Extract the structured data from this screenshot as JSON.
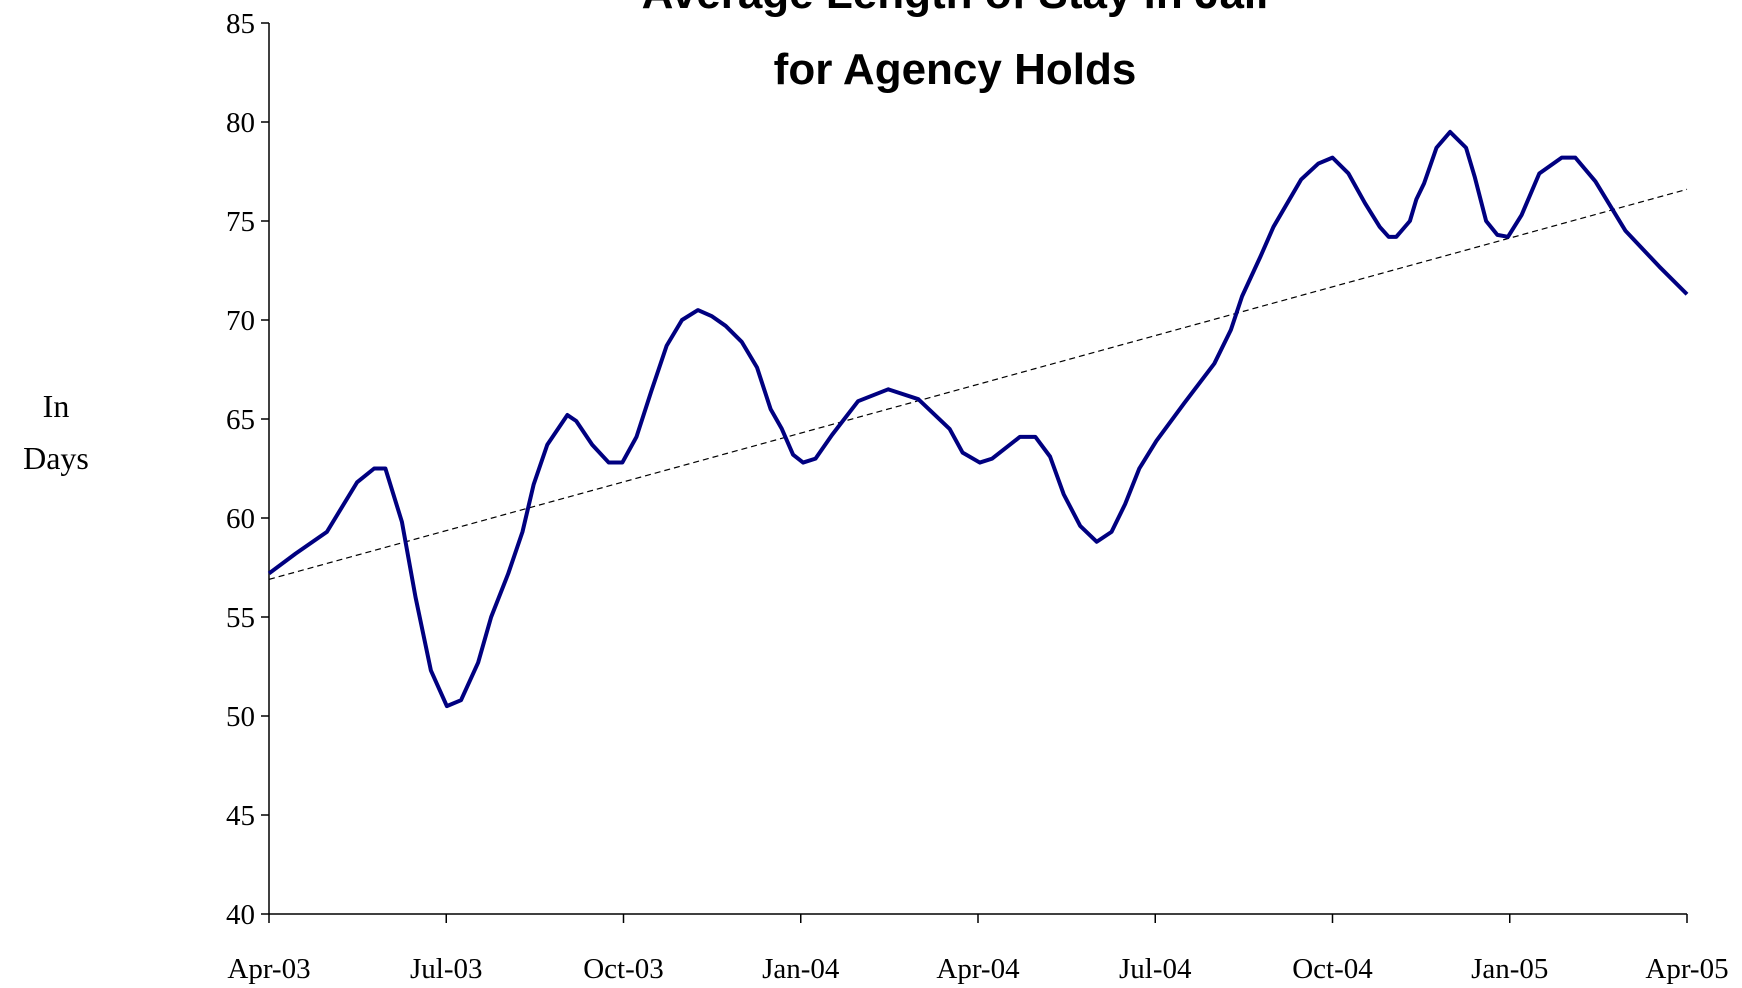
{
  "chart_data": {
    "type": "line",
    "title": [
      "Average Length of Stay in Jail",
      "for Agency Holds"
    ],
    "y_label": "In Days",
    "x": [
      0,
      0.45,
      0.98,
      1.49,
      1.78,
      1.97,
      2.25,
      2.48,
      2.74,
      3.01,
      3.25,
      3.54,
      3.76,
      4.05,
      4.29,
      4.48,
      4.71,
      5.05,
      5.2,
      5.47,
      5.75,
      5.98,
      6.22,
      6.47,
      6.73,
      6.99,
      7.26,
      7.49,
      7.73,
      8,
      8.26,
      8.49,
      8.68,
      8.87,
      9.04,
      9.25,
      9.53,
      9.97,
      10.48,
      10.99,
      11.52,
      11.74,
      12.03,
      12.24,
      12.71,
      12.97,
      13.22,
      13.45,
      13.73,
      14.01,
      14.26,
      14.49,
      14.73,
      15.02,
      15.49,
      16,
      16.28,
      16.47,
      16.78,
      17,
      17.47,
      17.76,
      18,
      18.27,
      18.55,
      18.8,
      18.95,
      19.08,
      19.31,
      19.42,
      19.55,
      19.76,
      19.99,
      20.26,
      20.41,
      20.6,
      20.79,
      20.97,
      21.2,
      21.5,
      21.88,
      22.11,
      22.45,
      22.96,
      23.53,
      24
    ],
    "series": [
      {
        "color": "#000080",
        "values": [
          57.2,
          58.2,
          59.3,
          61.8,
          62.5,
          62.5,
          59.8,
          56,
          52.3,
          50.5,
          50.8,
          52.7,
          55,
          57.2,
          59.3,
          61.7,
          63.7,
          65.2,
          64.9,
          63.7,
          62.8,
          62.8,
          64.1,
          66.4,
          68.7,
          70,
          70.5,
          70.2,
          69.7,
          68.9,
          67.6,
          65.5,
          64.5,
          63.2,
          62.8,
          63,
          64.2,
          65.9,
          66.5,
          66,
          64.5,
          63.3,
          62.8,
          63,
          64.1,
          64.1,
          63.1,
          61.2,
          59.6,
          58.8,
          59.3,
          60.7,
          62.5,
          63.9,
          65.8,
          67.8,
          69.5,
          71.2,
          73.2,
          74.7,
          77.1,
          77.9,
          78.2,
          77.4,
          75.9,
          74.7,
          74.2,
          74.2,
          75,
          76.1,
          76.9,
          78.7,
          79.5,
          78.7,
          77.2,
          75,
          74.3,
          74.2,
          75.3,
          77.4,
          78.2,
          78.2,
          77,
          74.5,
          72.7,
          71.3
        ]
      }
    ],
    "trendline": {
      "x": [
        0,
        24
      ],
      "values": [
        56.9,
        76.6
      ],
      "color": "#000000",
      "dashed": true
    },
    "xlim": [
      0,
      24
    ],
    "xticks": [
      {
        "value": 0,
        "label": "Apr-03"
      },
      {
        "value": 3,
        "label": "Jul-03"
      },
      {
        "value": 6,
        "label": "Oct-03"
      },
      {
        "value": 9,
        "label": "Jan-04"
      },
      {
        "value": 12,
        "label": "Apr-04"
      },
      {
        "value": 15,
        "label": "Jul-04"
      },
      {
        "value": 18,
        "label": "Oct-04"
      },
      {
        "value": 21,
        "label": "Jan-05"
      },
      {
        "value": 24,
        "label": "Apr-05"
      }
    ],
    "ylim": [
      40,
      85
    ],
    "yticks": [
      40,
      45,
      50,
      55,
      60,
      65,
      70,
      75,
      80,
      85
    ],
    "grid": false
  }
}
